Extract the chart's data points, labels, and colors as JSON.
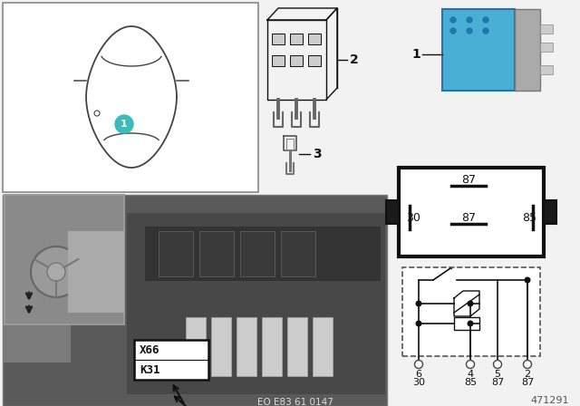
{
  "bg_color": "#f2f2f2",
  "white": "#ffffff",
  "dark": "#111111",
  "gray_dark": "#555555",
  "gray_med": "#888888",
  "gray_light": "#bbbbbb",
  "teal": "#3bbcb8",
  "relay_blue": "#4aafd4",
  "car_color": "#444444",
  "pin_labels_top": [
    "6",
    "4",
    "5",
    "2"
  ],
  "pin_labels_bottom": [
    "30",
    "85",
    "87",
    "87"
  ],
  "k_label1": "K31",
  "k_label2": "X66",
  "eo_label": "EO E83 61 0147",
  "ref_number": "471291",
  "fig_width": 6.4,
  "fig_height": 4.48
}
